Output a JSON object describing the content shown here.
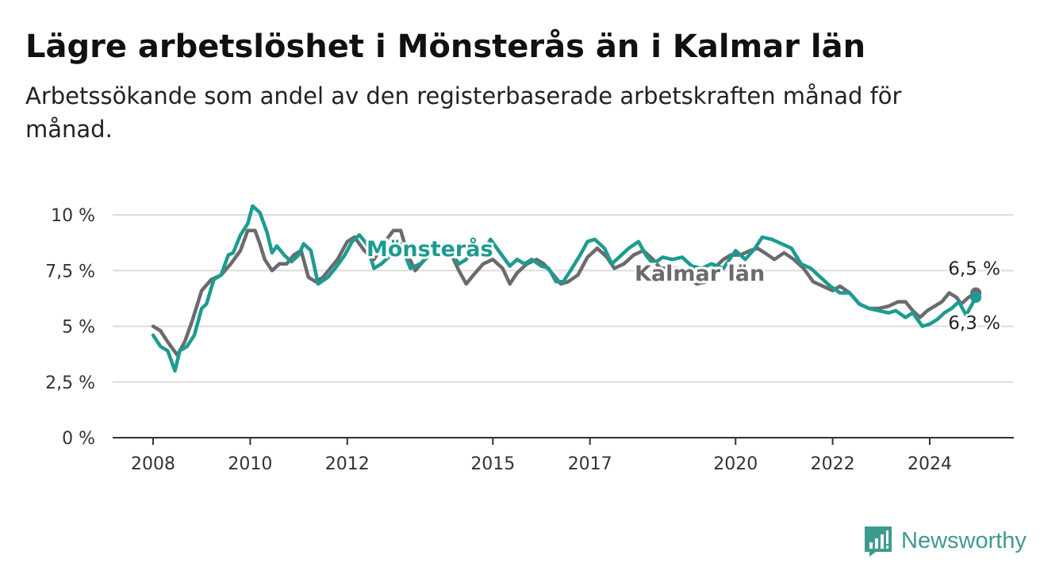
{
  "chart_data": {
    "type": "line",
    "title": "Lägre arbetslöshet i Mönsterås än i Kalmar län",
    "subtitle": "Arbetssökande som andel av den registerbaserade arbetskraften månad för månad.",
    "ylim": [
      0,
      10
    ],
    "xlim": [
      2008,
      2025.6
    ],
    "yticks": [
      0,
      2.5,
      5,
      7.5,
      10
    ],
    "ytick_labels": [
      "0 %",
      "2,5 %",
      "5 %",
      "7,5 %",
      "10 %"
    ],
    "xticks": [
      2008,
      2010,
      2012,
      2015,
      2017,
      2020,
      2022,
      2024
    ],
    "xtick_labels": [
      "2008",
      "2010",
      "2012",
      "2015",
      "2017",
      "2020",
      "2022",
      "2024"
    ],
    "grid": true,
    "series": [
      {
        "name": "Kalmar län",
        "color": "#6b6b6e",
        "end_label": "6,5 %",
        "x": [
          2008.0,
          2008.15,
          2008.3,
          2008.5,
          2008.65,
          2008.8,
          2009.0,
          2009.2,
          2009.4,
          2009.6,
          2009.8,
          2009.95,
          2010.1,
          2010.2,
          2010.3,
          2010.45,
          2010.6,
          2010.75,
          2010.9,
          2011.05,
          2011.2,
          2011.35,
          2011.5,
          2011.65,
          2011.8,
          2012.0,
          2012.15,
          2012.35,
          2012.55,
          2012.75,
          2012.95,
          2013.1,
          2013.25,
          2013.4,
          2013.6,
          2013.8,
          2014.0,
          2014.15,
          2014.3,
          2014.45,
          2014.6,
          2014.8,
          2015.0,
          2015.2,
          2015.35,
          2015.5,
          2015.7,
          2015.9,
          2016.05,
          2016.25,
          2016.4,
          2016.55,
          2016.75,
          2016.95,
          2017.15,
          2017.35,
          2017.5,
          2017.7,
          2017.9,
          2018.1,
          2018.3,
          2018.45,
          2018.6,
          2018.8,
          2019.0,
          2019.2,
          2019.4,
          2019.55,
          2019.75,
          2019.9,
          2020.1,
          2020.3,
          2020.45,
          2020.6,
          2020.8,
          2021.0,
          2021.2,
          2021.4,
          2021.6,
          2021.8,
          2022.0,
          2022.15,
          2022.35,
          2022.55,
          2022.75,
          2022.95,
          2023.15,
          2023.35,
          2023.5,
          2023.65,
          2023.8,
          2023.95,
          2024.1,
          2024.25,
          2024.4,
          2024.55,
          2024.65,
          2024.8,
          2024.95
        ],
        "y": [
          5.0,
          4.8,
          4.3,
          3.7,
          4.3,
          5.2,
          6.6,
          7.1,
          7.3,
          7.8,
          8.4,
          9.3,
          9.3,
          8.7,
          8.0,
          7.5,
          7.8,
          7.8,
          8.2,
          8.4,
          7.2,
          7.0,
          7.2,
          7.6,
          8.0,
          8.8,
          9.0,
          8.4,
          8.0,
          8.7,
          9.3,
          9.3,
          8.2,
          7.5,
          8.0,
          8.6,
          8.5,
          8.2,
          7.5,
          6.9,
          7.3,
          7.8,
          8.0,
          7.6,
          6.9,
          7.4,
          7.8,
          8.0,
          7.8,
          7.3,
          6.9,
          7.0,
          7.3,
          8.1,
          8.5,
          8.1,
          7.6,
          7.8,
          8.2,
          8.4,
          8.0,
          7.6,
          7.6,
          7.6,
          7.3,
          6.9,
          7.0,
          7.6,
          8.0,
          8.2,
          8.2,
          8.4,
          8.5,
          8.3,
          8.0,
          8.3,
          8.0,
          7.6,
          7.0,
          6.8,
          6.6,
          6.8,
          6.5,
          6.0,
          5.8,
          5.8,
          5.9,
          6.1,
          6.1,
          5.7,
          5.4,
          5.7,
          5.9,
          6.1,
          6.5,
          6.3,
          6.0,
          6.3,
          6.5
        ]
      },
      {
        "name": "Mönsterås",
        "color": "#1d9b8f",
        "end_label": "6,3 %",
        "x": [
          2008.0,
          2008.15,
          2008.3,
          2008.45,
          2008.55,
          2008.7,
          2008.85,
          2009.0,
          2009.1,
          2009.25,
          2009.4,
          2009.55,
          2009.65,
          2009.8,
          2009.95,
          2010.05,
          2010.2,
          2010.35,
          2010.45,
          2010.55,
          2010.7,
          2010.85,
          2011.0,
          2011.1,
          2011.25,
          2011.4,
          2011.6,
          2011.75,
          2011.95,
          2012.1,
          2012.25,
          2012.4,
          2012.55,
          2012.7,
          2012.9,
          2013.1,
          2013.3,
          2013.5,
          2013.7,
          2013.95,
          2014.15,
          2014.3,
          2014.45,
          2014.6,
          2014.8,
          2014.95,
          2015.15,
          2015.35,
          2015.5,
          2015.65,
          2015.8,
          2016.0,
          2016.15,
          2016.3,
          2016.45,
          2016.6,
          2016.8,
          2016.95,
          2017.1,
          2017.3,
          2017.45,
          2017.6,
          2017.8,
          2018.0,
          2018.15,
          2018.3,
          2018.5,
          2018.7,
          2018.9,
          2019.1,
          2019.3,
          2019.5,
          2019.75,
          2020.0,
          2020.2,
          2020.4,
          2020.55,
          2020.75,
          2020.95,
          2021.15,
          2021.35,
          2021.55,
          2021.75,
          2021.95,
          2022.15,
          2022.35,
          2022.55,
          2022.75,
          2022.95,
          2023.15,
          2023.3,
          2023.5,
          2023.65,
          2023.85,
          2024.0,
          2024.15,
          2024.3,
          2024.45,
          2024.6,
          2024.75,
          2024.95
        ],
        "y": [
          4.6,
          4.1,
          3.9,
          3.0,
          3.9,
          4.1,
          4.6,
          5.8,
          6.0,
          7.1,
          7.3,
          8.2,
          8.3,
          9.1,
          9.6,
          10.4,
          10.1,
          9.2,
          8.3,
          8.6,
          8.2,
          7.9,
          8.2,
          8.7,
          8.4,
          6.9,
          7.2,
          7.6,
          8.2,
          8.8,
          9.1,
          8.7,
          7.6,
          7.8,
          8.2,
          8.7,
          7.6,
          7.8,
          8.2,
          8.6,
          8.3,
          7.8,
          8.0,
          8.5,
          8.3,
          8.9,
          8.3,
          7.7,
          8.0,
          7.8,
          8.0,
          7.7,
          7.6,
          7.0,
          7.0,
          7.5,
          8.2,
          8.8,
          8.9,
          8.5,
          7.8,
          8.1,
          8.5,
          8.8,
          8.2,
          7.8,
          8.1,
          8.0,
          8.1,
          7.7,
          7.6,
          7.8,
          7.6,
          8.4,
          8.0,
          8.5,
          9.0,
          8.9,
          8.7,
          8.5,
          7.8,
          7.6,
          7.2,
          6.8,
          6.5,
          6.5,
          6.0,
          5.8,
          5.7,
          5.6,
          5.7,
          5.4,
          5.6,
          5.0,
          5.1,
          5.3,
          5.6,
          5.8,
          6.1,
          5.5,
          6.3
        ]
      }
    ],
    "annotations": [
      {
        "text": "Mönsterås",
        "series": "Mönsterås"
      },
      {
        "text": "Kalmar län",
        "series": "Kalmar län"
      }
    ]
  },
  "brand": {
    "name": "Newsworthy"
  }
}
